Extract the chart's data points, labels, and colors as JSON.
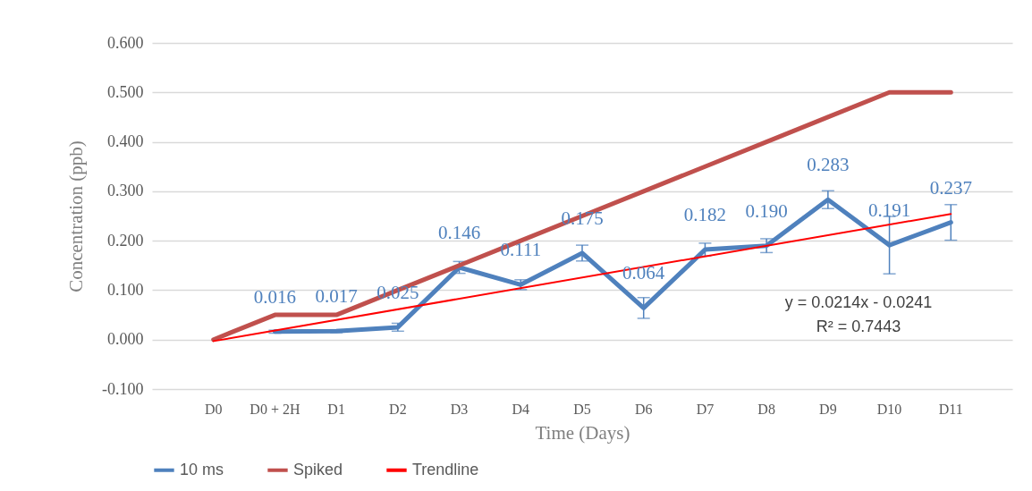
{
  "chart_data": {
    "type": "line",
    "xlabel": "Time (Days)",
    "ylabel": "Concentration (ppb)",
    "categories": [
      "D0",
      "D0 + 2H",
      "D1",
      "D2",
      "D3",
      "D4",
      "D5",
      "D6",
      "D7",
      "D8",
      "D9",
      "D10",
      "D11"
    ],
    "series": [
      {
        "name": "10 ms",
        "color": "#4f81bd",
        "values": [
          null,
          0.016,
          0.017,
          0.025,
          0.146,
          0.111,
          0.175,
          0.064,
          0.182,
          0.19,
          0.283,
          0.191,
          0.237
        ],
        "errors": [
          null,
          0.003,
          0.003,
          0.008,
          0.012,
          0.01,
          0.016,
          0.021,
          0.013,
          0.014,
          0.018,
          0.058,
          0.036
        ],
        "value_labels": [
          null,
          "0.016",
          "0.017",
          "0.025",
          "0.146",
          "0.111",
          "0.175",
          "0.064",
          "0.182",
          "0.190",
          "0.283",
          "0.191",
          "0.237"
        ]
      },
      {
        "name": "Spiked",
        "color": "#c0504d",
        "values": [
          0,
          0.05,
          0.05,
          0.1,
          0.15,
          0.2,
          0.25,
          0.3,
          0.35,
          0.4,
          0.45,
          0.5,
          0.5
        ]
      },
      {
        "name": "Trendline",
        "type": "line",
        "color": "#ff0000",
        "x": [
          "D0",
          "D11"
        ],
        "values": [
          -0.003,
          0.254
        ]
      }
    ],
    "ylim": [
      -0.1,
      0.6
    ],
    "yticks": [
      {
        "value": -0.1,
        "label": "-0.100"
      },
      {
        "value": 0,
        "label": "0.000"
      },
      {
        "value": 0.1,
        "label": "0.100"
      },
      {
        "value": 0.2,
        "label": "0.200"
      },
      {
        "value": 0.3,
        "label": "0.300"
      },
      {
        "value": 0.4,
        "label": "0.400"
      },
      {
        "value": 0.5,
        "label": "0.500"
      },
      {
        "value": 0.6,
        "label": "0.600"
      }
    ],
    "grid": "y",
    "legend": "bottom",
    "marker": "none",
    "line_style": "solid",
    "annotations": [
      "y = 0.0214x - 0.0241",
      "R² = 0.7443"
    ]
  }
}
